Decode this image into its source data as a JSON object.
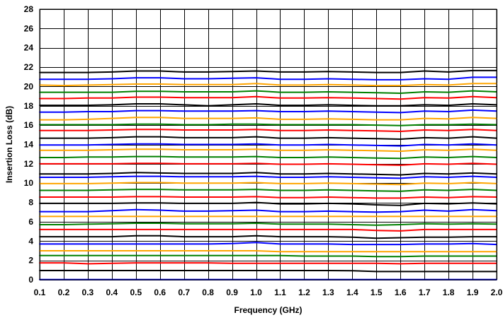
{
  "chart_data": {
    "type": "line",
    "title": "",
    "xlabel": "Frequency (GHz)",
    "ylabel": "Insertion  Loss (dB)",
    "xlim": [
      0.1,
      2.0
    ],
    "ylim": [
      0,
      28
    ],
    "x_ticks": [
      "0.1",
      "0.2",
      "0.3",
      "0.4",
      "0.5",
      "0.6",
      "0.7",
      "0.8",
      "0.9",
      "1.0",
      "1.1",
      "1.2",
      "1.3",
      "1.4",
      "1.5",
      "1.6",
      "1.7",
      "1.8",
      "1.9",
      "2.0"
    ],
    "y_ticks": [
      "0",
      "2",
      "4",
      "6",
      "8",
      "10",
      "12",
      "14",
      "16",
      "18",
      "20",
      "22",
      "24",
      "26",
      "28"
    ],
    "grid": true,
    "legend": "none",
    "x": [
      0.1,
      0.2,
      0.3,
      0.4,
      0.5,
      0.6,
      0.7,
      0.8,
      0.9,
      1.0,
      1.1,
      1.2,
      1.3,
      1.4,
      1.5,
      1.6,
      1.7,
      1.8,
      1.9,
      2.0
    ],
    "series": [
      {
        "color": "#0000ff",
        "values": [
          0.02,
          0.02,
          0.02,
          0.02,
          0.02,
          0.02,
          0.02,
          0.02,
          0.02,
          0.02,
          0.02,
          0.02,
          0.02,
          0.02,
          0.02,
          0.02,
          0.02,
          0.02,
          0.02,
          0.02
        ]
      },
      {
        "color": "#000000",
        "values": [
          0.95,
          0.95,
          0.95,
          0.95,
          0.95,
          0.95,
          0.95,
          0.95,
          0.95,
          0.95,
          0.95,
          0.95,
          0.95,
          0.93,
          0.85,
          0.85,
          0.85,
          0.85,
          0.85,
          0.85
        ]
      },
      {
        "color": "#ff0000",
        "values": [
          1.75,
          1.75,
          1.65,
          1.7,
          1.75,
          1.75,
          1.75,
          1.75,
          1.7,
          1.7,
          1.7,
          1.7,
          1.7,
          1.7,
          1.7,
          1.65,
          1.7,
          1.7,
          1.7,
          1.7
        ]
      },
      {
        "color": "#008000",
        "values": [
          2.5,
          2.5,
          2.5,
          2.5,
          2.5,
          2.5,
          2.5,
          2.5,
          2.5,
          2.5,
          2.5,
          2.45,
          2.45,
          2.45,
          2.4,
          2.4,
          2.45,
          2.45,
          2.45,
          2.45
        ]
      },
      {
        "color": "#ffa500",
        "values": [
          3.0,
          3.0,
          3.0,
          3.0,
          3.0,
          3.0,
          3.0,
          3.0,
          3.0,
          3.0,
          2.9,
          2.9,
          2.9,
          2.9,
          2.9,
          2.9,
          2.9,
          2.9,
          2.9,
          2.9
        ]
      },
      {
        "color": "#0000ff",
        "values": [
          3.7,
          3.7,
          3.7,
          3.7,
          3.7,
          3.7,
          3.7,
          3.7,
          3.75,
          3.85,
          3.7,
          3.7,
          3.7,
          3.65,
          3.65,
          3.65,
          3.7,
          3.7,
          3.75,
          3.65
        ]
      },
      {
        "color": "#000000",
        "values": [
          4.45,
          4.45,
          4.45,
          4.45,
          4.55,
          4.55,
          4.45,
          4.45,
          4.45,
          4.55,
          4.45,
          4.45,
          4.45,
          4.4,
          4.3,
          4.35,
          4.4,
          4.4,
          4.45,
          4.45
        ]
      },
      {
        "color": "#ff0000",
        "values": [
          5.2,
          5.2,
          5.2,
          5.2,
          5.2,
          5.2,
          5.2,
          5.2,
          5.2,
          5.2,
          5.2,
          5.2,
          5.2,
          5.2,
          5.1,
          5.05,
          5.2,
          5.2,
          5.2,
          5.2
        ]
      },
      {
        "color": "#008000",
        "values": [
          5.7,
          5.7,
          5.75,
          5.8,
          5.85,
          5.85,
          5.8,
          5.8,
          5.8,
          5.85,
          5.75,
          5.75,
          5.75,
          5.7,
          5.65,
          5.7,
          5.8,
          5.75,
          5.8,
          5.75
        ]
      },
      {
        "color": "#ffa500",
        "values": [
          6.55,
          6.55,
          6.55,
          6.55,
          6.55,
          6.55,
          6.55,
          6.55,
          6.55,
          6.55,
          6.55,
          6.55,
          6.55,
          6.55,
          6.55,
          6.55,
          6.55,
          6.55,
          6.55,
          6.55
        ]
      },
      {
        "color": "#0000ff",
        "values": [
          7.05,
          7.05,
          7.05,
          7.15,
          7.25,
          7.2,
          7.1,
          7.1,
          7.15,
          7.2,
          7.05,
          7.05,
          7.1,
          7.05,
          7.0,
          7.05,
          7.2,
          7.1,
          7.25,
          7.15
        ]
      },
      {
        "color": "#000000",
        "values": [
          7.9,
          7.9,
          7.9,
          7.9,
          7.95,
          7.95,
          7.9,
          7.9,
          7.9,
          8.0,
          7.85,
          7.85,
          7.9,
          7.85,
          7.75,
          7.7,
          7.9,
          7.85,
          7.95,
          7.85
        ]
      },
      {
        "color": "#ff0000",
        "values": [
          8.55,
          8.55,
          8.55,
          8.55,
          8.6,
          8.6,
          8.55,
          8.55,
          8.55,
          8.6,
          8.5,
          8.5,
          8.55,
          8.5,
          8.45,
          8.45,
          8.55,
          8.5,
          8.6,
          8.55
        ]
      },
      {
        "color": "#008000",
        "values": [
          9.25,
          9.25,
          9.25,
          9.3,
          9.35,
          9.35,
          9.3,
          9.3,
          9.3,
          9.35,
          9.25,
          9.25,
          9.3,
          9.25,
          9.2,
          9.15,
          9.3,
          9.25,
          9.35,
          9.25
        ]
      },
      {
        "color": "#ffa500",
        "values": [
          9.95,
          9.95,
          9.95,
          10.0,
          10.05,
          10.05,
          10.0,
          10.0,
          10.0,
          10.05,
          9.95,
          9.95,
          10.0,
          9.95,
          9.9,
          9.85,
          10.0,
          9.95,
          10.05,
          9.95
        ]
      },
      {
        "color": "#0000ff",
        "values": [
          10.6,
          10.6,
          10.6,
          10.65,
          10.7,
          10.7,
          10.65,
          10.65,
          10.65,
          10.7,
          10.6,
          10.6,
          10.65,
          10.6,
          10.55,
          10.5,
          10.65,
          10.6,
          10.7,
          10.6
        ]
      },
      {
        "color": "#000000",
        "values": [
          10.95,
          10.95,
          10.95,
          11.0,
          11.1,
          11.05,
          11.0,
          11.0,
          11.0,
          11.1,
          10.95,
          10.95,
          11.0,
          10.95,
          10.9,
          10.85,
          11.0,
          10.95,
          11.05,
          10.95
        ]
      },
      {
        "color": "#ff0000",
        "values": [
          12.0,
          12.0,
          12.0,
          12.0,
          12.05,
          12.05,
          12.0,
          12.0,
          12.0,
          12.05,
          11.95,
          11.95,
          12.0,
          11.95,
          11.9,
          11.85,
          12.0,
          11.95,
          12.05,
          11.95
        ]
      },
      {
        "color": "#008000",
        "values": [
          12.65,
          12.65,
          12.7,
          12.7,
          12.75,
          12.75,
          12.7,
          12.7,
          12.7,
          12.75,
          12.65,
          12.65,
          12.7,
          12.65,
          12.6,
          12.55,
          12.7,
          12.65,
          12.75,
          12.65
        ]
      },
      {
        "color": "#ffa500",
        "values": [
          13.4,
          13.4,
          13.4,
          13.45,
          13.5,
          13.5,
          13.45,
          13.45,
          13.45,
          13.5,
          13.4,
          13.4,
          13.45,
          13.4,
          13.35,
          13.3,
          13.45,
          13.4,
          13.5,
          13.4
        ]
      },
      {
        "color": "#0000ff",
        "values": [
          13.95,
          13.95,
          13.95,
          14.0,
          14.05,
          14.05,
          14.0,
          14.0,
          14.0,
          14.05,
          13.95,
          13.95,
          14.0,
          13.95,
          13.9,
          13.85,
          14.0,
          13.95,
          14.05,
          13.95
        ]
      },
      {
        "color": "#000000",
        "values": [
          14.65,
          14.65,
          14.65,
          14.7,
          14.8,
          14.8,
          14.7,
          14.7,
          14.7,
          14.8,
          14.65,
          14.65,
          14.7,
          14.65,
          14.6,
          14.55,
          14.7,
          14.65,
          14.8,
          14.65
        ]
      },
      {
        "color": "#ff0000",
        "values": [
          15.45,
          15.45,
          15.45,
          15.5,
          15.55,
          15.55,
          15.5,
          15.5,
          15.5,
          15.55,
          15.45,
          15.45,
          15.5,
          15.45,
          15.4,
          15.35,
          15.5,
          15.45,
          15.55,
          15.45
        ]
      },
      {
        "color": "#008000",
        "values": [
          16.05,
          16.05,
          16.05,
          16.05,
          16.1,
          16.1,
          16.05,
          16.05,
          16.1,
          16.1,
          16.05,
          16.05,
          16.05,
          16.05,
          16.0,
          15.95,
          16.05,
          16.05,
          16.1,
          16.05
        ]
      },
      {
        "color": "#ffa500",
        "values": [
          16.55,
          16.55,
          16.6,
          16.7,
          16.8,
          16.8,
          16.7,
          16.7,
          16.7,
          16.75,
          16.6,
          16.6,
          16.65,
          16.6,
          16.55,
          16.55,
          16.7,
          16.65,
          16.8,
          16.7
        ]
      },
      {
        "color": "#0000ff",
        "values": [
          17.35,
          17.35,
          17.4,
          17.4,
          17.5,
          17.5,
          17.45,
          17.45,
          17.45,
          17.5,
          17.4,
          17.4,
          17.45,
          17.4,
          17.35,
          17.3,
          17.45,
          17.4,
          17.55,
          17.45
        ]
      },
      {
        "color": "#000000",
        "values": [
          18.05,
          18.05,
          18.05,
          18.1,
          18.2,
          18.2,
          18.1,
          18.0,
          18.1,
          18.2,
          18.05,
          18.05,
          18.1,
          18.05,
          18.0,
          18.0,
          18.1,
          18.05,
          18.2,
          18.1
        ]
      },
      {
        "color": "#ff0000",
        "values": [
          18.75,
          18.75,
          18.8,
          18.8,
          18.9,
          18.9,
          18.85,
          18.85,
          18.85,
          18.95,
          18.8,
          18.8,
          18.85,
          18.8,
          18.75,
          18.7,
          18.85,
          18.8,
          18.95,
          18.85
        ]
      },
      {
        "color": "#008000",
        "values": [
          19.4,
          19.4,
          19.4,
          19.4,
          19.5,
          19.5,
          19.45,
          19.45,
          19.45,
          19.55,
          19.4,
          19.4,
          19.45,
          19.4,
          19.35,
          19.3,
          19.45,
          19.4,
          19.55,
          19.45
        ]
      },
      {
        "color": "#ffa500",
        "values": [
          20.15,
          20.1,
          20.15,
          20.2,
          20.25,
          20.25,
          20.2,
          20.2,
          20.2,
          20.3,
          20.15,
          20.15,
          20.2,
          20.15,
          20.1,
          20.1,
          20.2,
          20.15,
          20.3,
          20.3
        ]
      },
      {
        "color": "#0000ff",
        "values": [
          20.75,
          20.75,
          20.75,
          20.8,
          20.9,
          20.9,
          20.8,
          20.8,
          20.85,
          20.9,
          20.75,
          20.75,
          20.8,
          20.75,
          20.7,
          20.7,
          20.8,
          20.75,
          20.95,
          20.95
        ]
      },
      {
        "color": "#000000",
        "values": [
          21.45,
          21.45,
          21.45,
          21.5,
          21.6,
          21.6,
          21.5,
          21.5,
          21.55,
          21.6,
          21.5,
          21.5,
          21.55,
          21.5,
          21.45,
          21.45,
          21.6,
          21.5,
          21.65,
          21.65
        ]
      }
    ]
  }
}
